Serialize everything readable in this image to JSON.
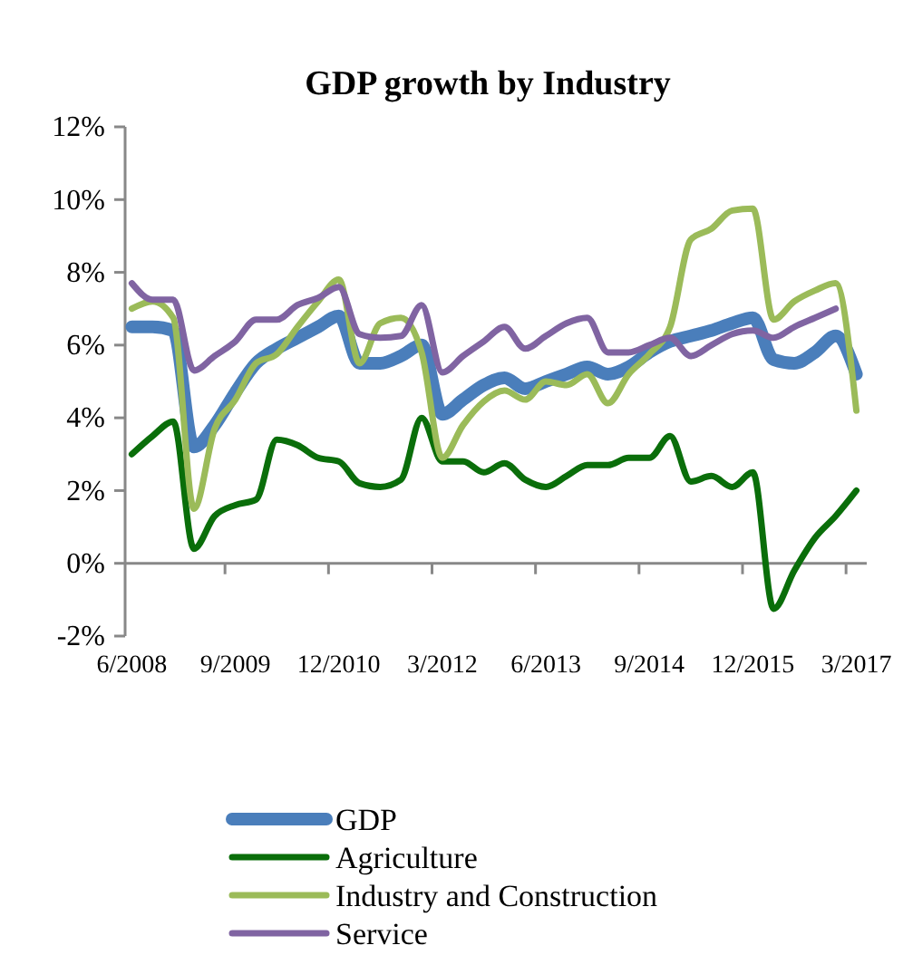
{
  "chart_data": {
    "type": "line",
    "title": "GDP growth by Industry",
    "categories": [
      "6/2008",
      null,
      null,
      null,
      null,
      "9/2009",
      null,
      null,
      null,
      null,
      "12/2010",
      null,
      null,
      null,
      null,
      "3/2012",
      null,
      null,
      null,
      null,
      "6/2013",
      null,
      null,
      null,
      null,
      "9/2014",
      null,
      null,
      null,
      null,
      "12/2015",
      null,
      null,
      null,
      null,
      "3/2017"
    ],
    "series": [
      {
        "name": "GDP",
        "color": "#4a7ebb",
        "values": [
          6.5,
          6.5,
          6.4,
          3.2,
          3.8,
          4.7,
          5.5,
          5.9,
          6.2,
          6.5,
          6.8,
          5.5,
          5.5,
          5.7,
          6.0,
          4.1,
          4.5,
          4.9,
          5.1,
          4.8,
          5.0,
          5.2,
          5.4,
          5.2,
          5.4,
          5.8,
          6.1,
          6.25,
          6.4,
          6.6,
          6.75,
          5.6,
          5.5,
          5.8,
          6.25,
          5.2
        ]
      },
      {
        "name": "Agriculture",
        "color": "#0a6e0a",
        "values": [
          3.0,
          3.5,
          3.9,
          0.4,
          1.3,
          1.6,
          1.75,
          3.4,
          3.25,
          2.9,
          2.8,
          2.2,
          2.1,
          2.3,
          4.0,
          2.8,
          2.8,
          2.5,
          2.75,
          2.3,
          2.1,
          2.4,
          2.7,
          2.7,
          2.9,
          2.9,
          3.5,
          2.25,
          2.4,
          2.1,
          2.5,
          -1.25,
          -0.2,
          0.7,
          1.3,
          2.0
        ]
      },
      {
        "name": "Industry and Construction",
        "color": "#9bbb59",
        "values": [
          7.0,
          7.2,
          6.75,
          1.5,
          3.7,
          4.5,
          5.5,
          5.75,
          6.5,
          7.2,
          7.8,
          5.5,
          6.6,
          6.75,
          5.8,
          2.9,
          3.8,
          4.45,
          4.75,
          4.5,
          5.0,
          4.9,
          5.2,
          4.4,
          5.2,
          5.75,
          6.5,
          8.9,
          9.2,
          9.7,
          9.75,
          6.7,
          7.2,
          7.5,
          7.7,
          4.2
        ]
      },
      {
        "name": "Service",
        "color": "#8064a2",
        "values": [
          7.7,
          7.25,
          7.25,
          5.3,
          5.7,
          6.1,
          6.7,
          6.7,
          7.1,
          7.3,
          7.6,
          6.3,
          6.2,
          6.25,
          7.1,
          5.25,
          5.7,
          6.1,
          6.5,
          5.9,
          6.25,
          6.6,
          6.75,
          5.8,
          5.8,
          6.0,
          6.2,
          5.7,
          6.0,
          6.3,
          6.4,
          6.2,
          6.5,
          6.75,
          7.0,
          null
        ]
      }
    ],
    "ylim": [
      -2,
      12
    ],
    "yticks": [
      {
        "value": -2,
        "label": "-2%"
      },
      {
        "value": 0,
        "label": "0%"
      },
      {
        "value": 2,
        "label": "2%"
      },
      {
        "value": 4,
        "label": "4%"
      },
      {
        "value": 6,
        "label": "6%"
      },
      {
        "value": 8,
        "label": "8%"
      },
      {
        "value": 10,
        "label": "10%"
      },
      {
        "value": 12,
        "label": "12%"
      }
    ],
    "legend": "bottom",
    "marker": "none",
    "line_style": "solid"
  }
}
